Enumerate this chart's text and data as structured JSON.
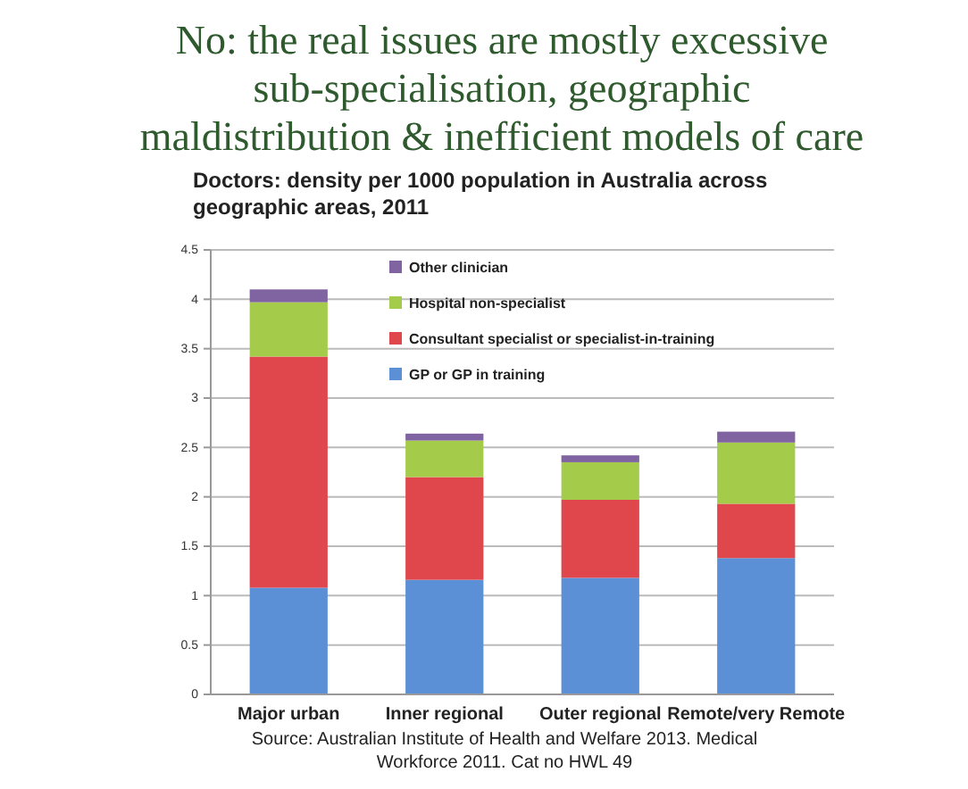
{
  "chart_data": {
    "type": "bar",
    "stacked": true,
    "title": "No: the real issues are mostly excessive sub-specialisation, geographic maldistribution & inefficient models of care",
    "subtitle": "Doctors: density per 1000 population in Australia across geographic areas, 2011",
    "annotations": [
      "Source: Australian Institute of Health and Welfare 2013. Medical Workforce 2011. Cat no HWL 49"
    ],
    "categories": [
      "Major urban",
      "Inner regional",
      "Outer regional",
      "Remote/very Remote"
    ],
    "series": [
      {
        "name": "GP or GP in training",
        "color": "#5b8fd6",
        "values": [
          1.08,
          1.16,
          1.18,
          1.38
        ]
      },
      {
        "name": "Consultant specialist or specialist-in-training",
        "color": "#e0474c",
        "values": [
          2.34,
          1.04,
          0.79,
          0.55
        ]
      },
      {
        "name": "Hospital non-specialist",
        "color": "#a4cc4a",
        "values": [
          0.55,
          0.37,
          0.38,
          0.62
        ]
      },
      {
        "name": "Other clinician",
        "color": "#8064a2",
        "values": [
          0.13,
          0.07,
          0.07,
          0.11
        ]
      }
    ],
    "ylim": [
      0,
      4.5
    ],
    "yticks": [
      0,
      0.5,
      1,
      1.5,
      2,
      2.5,
      3,
      3.5,
      4,
      4.5
    ],
    "grid": "y",
    "legend": "top"
  }
}
